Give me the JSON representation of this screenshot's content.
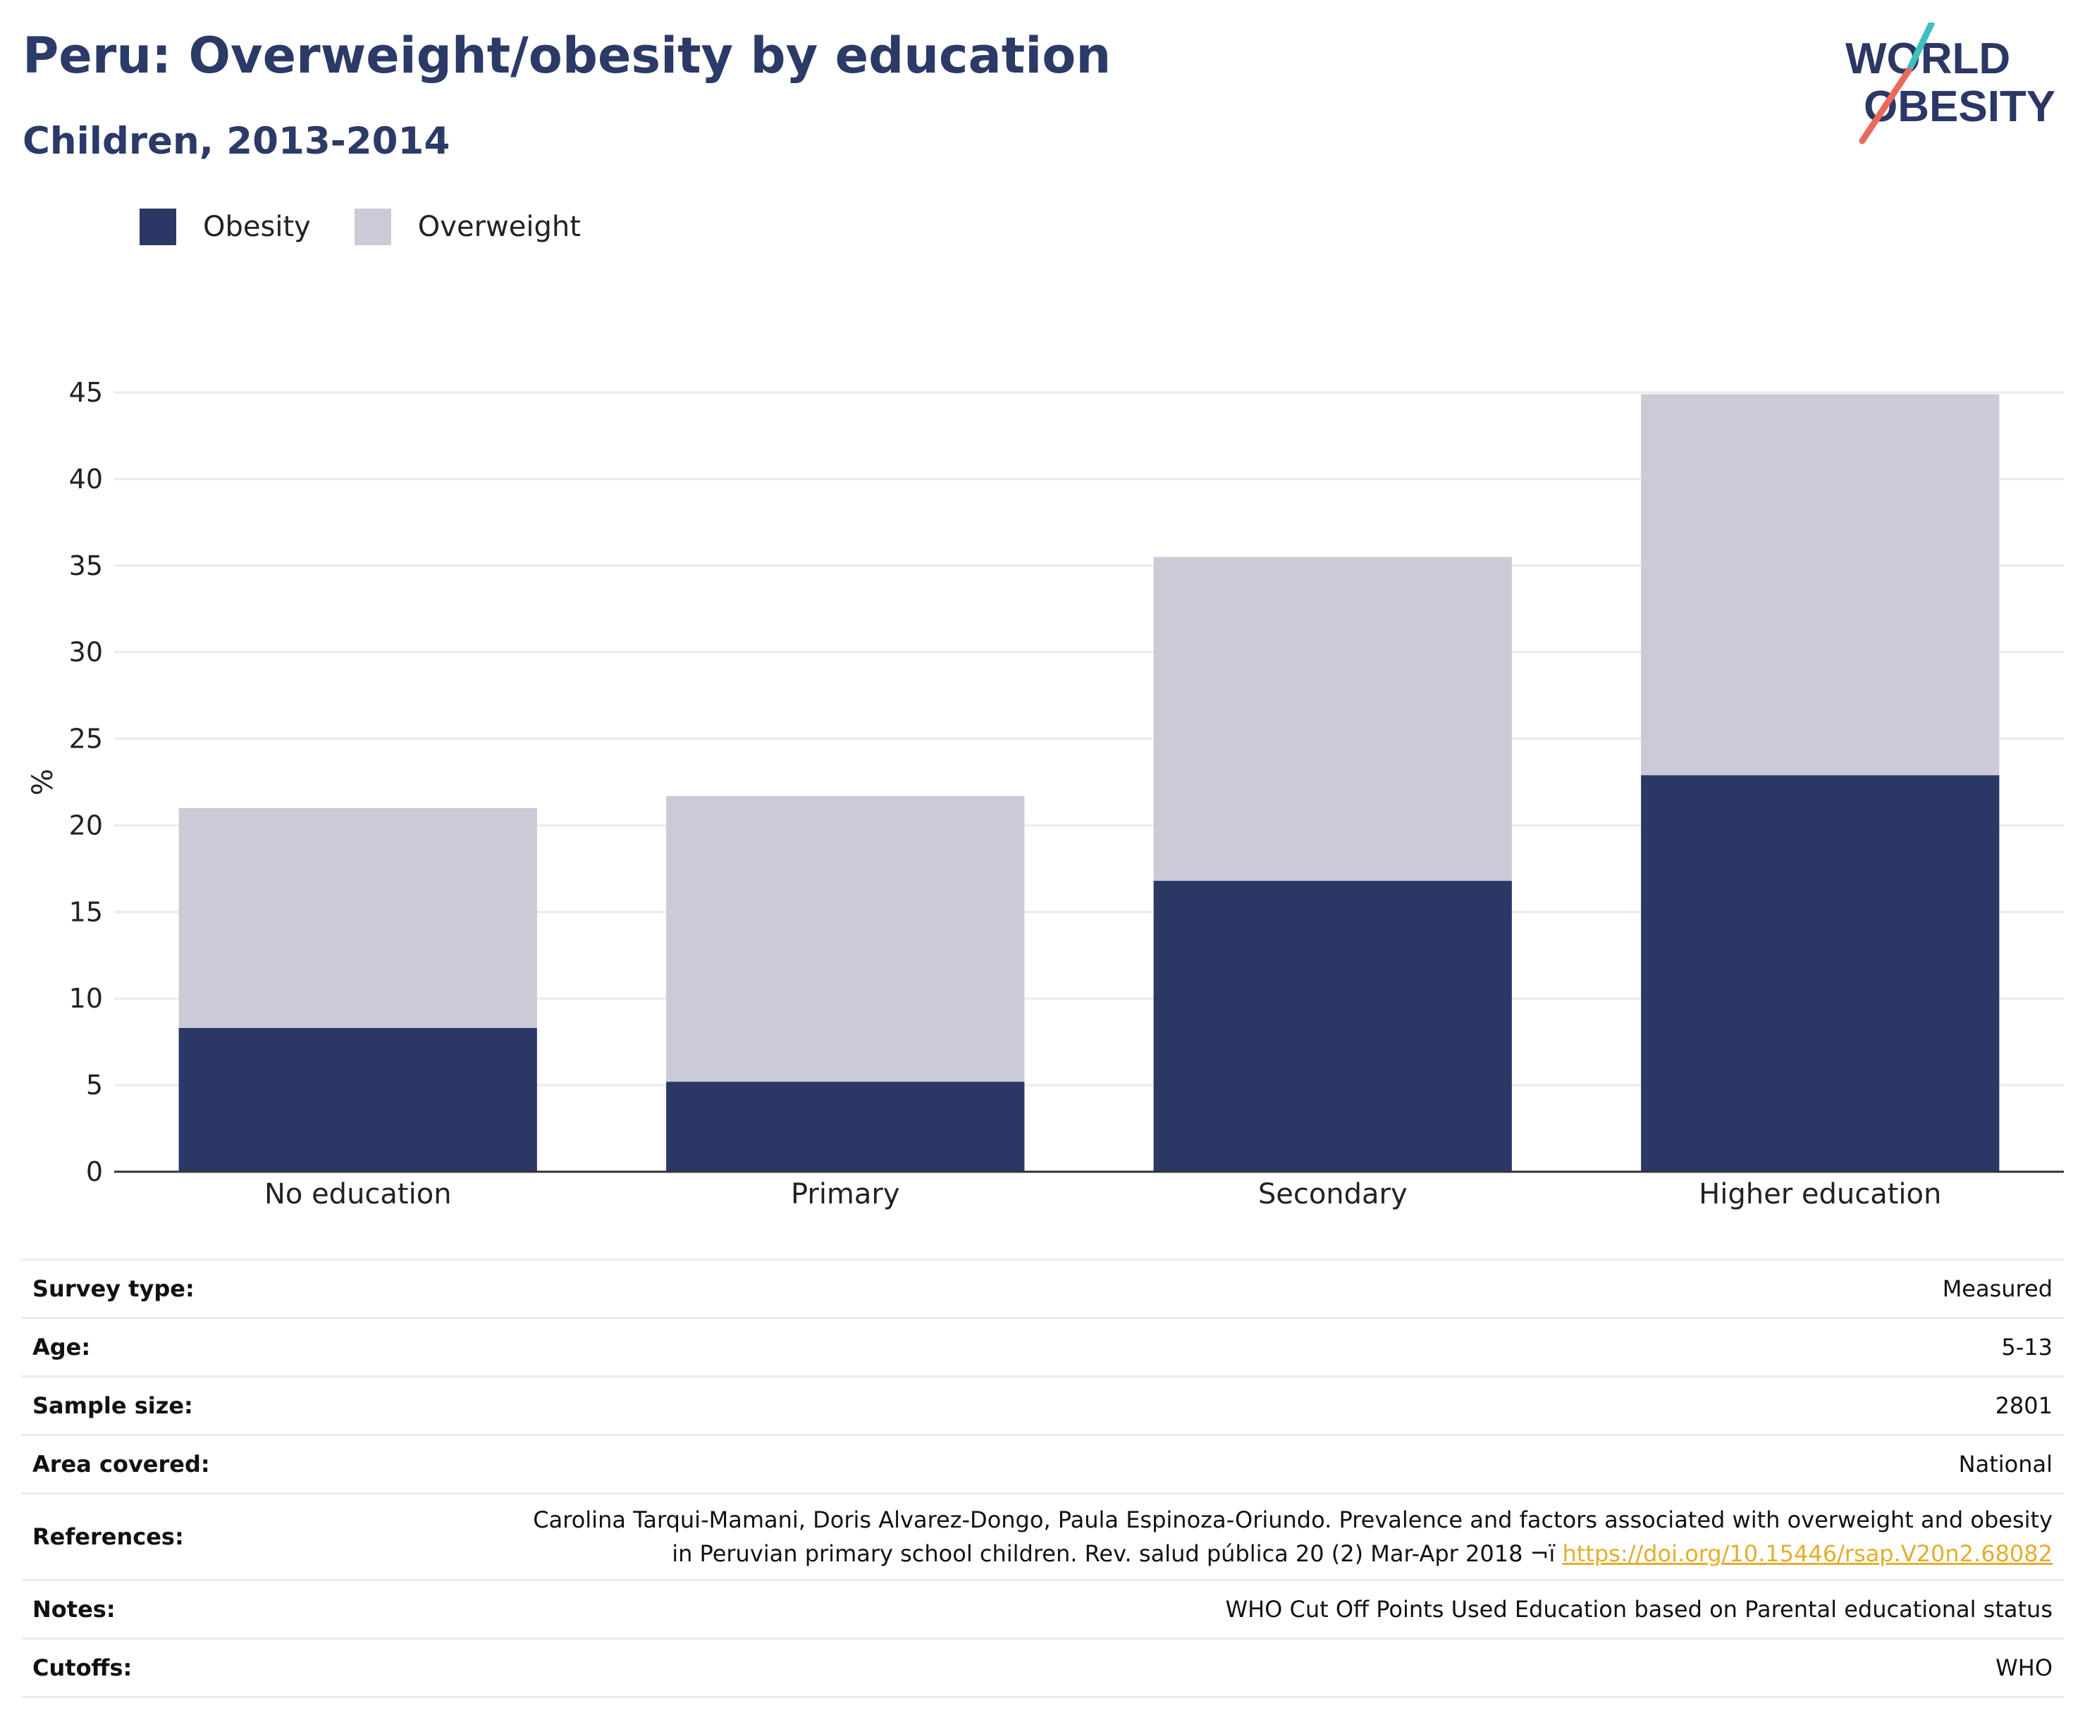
{
  "header": {
    "title": "Peru: Overweight/obesity by education",
    "subtitle": "Children, 2013-2014"
  },
  "logo": {
    "line1": "WORLD",
    "line2": "OBESITY"
  },
  "colors": {
    "obesity": "#2b3764",
    "overweight": "#cacbd7",
    "accent_teal": "#3fbfbf",
    "accent_red": "#e96a5a",
    "link": "#e3ae2d"
  },
  "chart_data": {
    "type": "bar",
    "stacked": true,
    "categories": [
      "No education",
      "Primary",
      "Secondary",
      "Higher education"
    ],
    "series": [
      {
        "name": "Obesity",
        "values": [
          8.3,
          5.2,
          16.8,
          22.9
        ]
      },
      {
        "name": "Overweight",
        "values": [
          12.7,
          16.5,
          18.7,
          22.0
        ]
      }
    ],
    "ylabel": "%",
    "ylim": [
      0,
      45
    ],
    "yticks": [
      0,
      5,
      10,
      15,
      20,
      25,
      30,
      35,
      40,
      45
    ],
    "grid": true,
    "legend_position": "top-left"
  },
  "meta": {
    "rows": [
      {
        "label": "Survey type:",
        "value": "Measured"
      },
      {
        "label": "Age:",
        "value": "5-13"
      },
      {
        "label": "Sample size:",
        "value": "2801"
      },
      {
        "label": "Area covered:",
        "value": "National"
      },
      {
        "label": "References:",
        "value_line1": "Carolina Tarqui-Mamani, Doris Alvarez-Dongo, Paula Espinoza-Oriundo. Prevalence and factors associated with overweight and obesity",
        "value_line2": "in Peruvian primary school children. Rev. salud pública 20 (2) Mar-Apr 2018 ¬ï",
        "link": "https://doi.org/10.15446/rsap.V20n2.68082"
      },
      {
        "label": "Notes:",
        "value": "WHO Cut Off Points Used Education based on Parental educational status"
      },
      {
        "label": "Cutoffs:",
        "value": "WHO"
      }
    ]
  }
}
